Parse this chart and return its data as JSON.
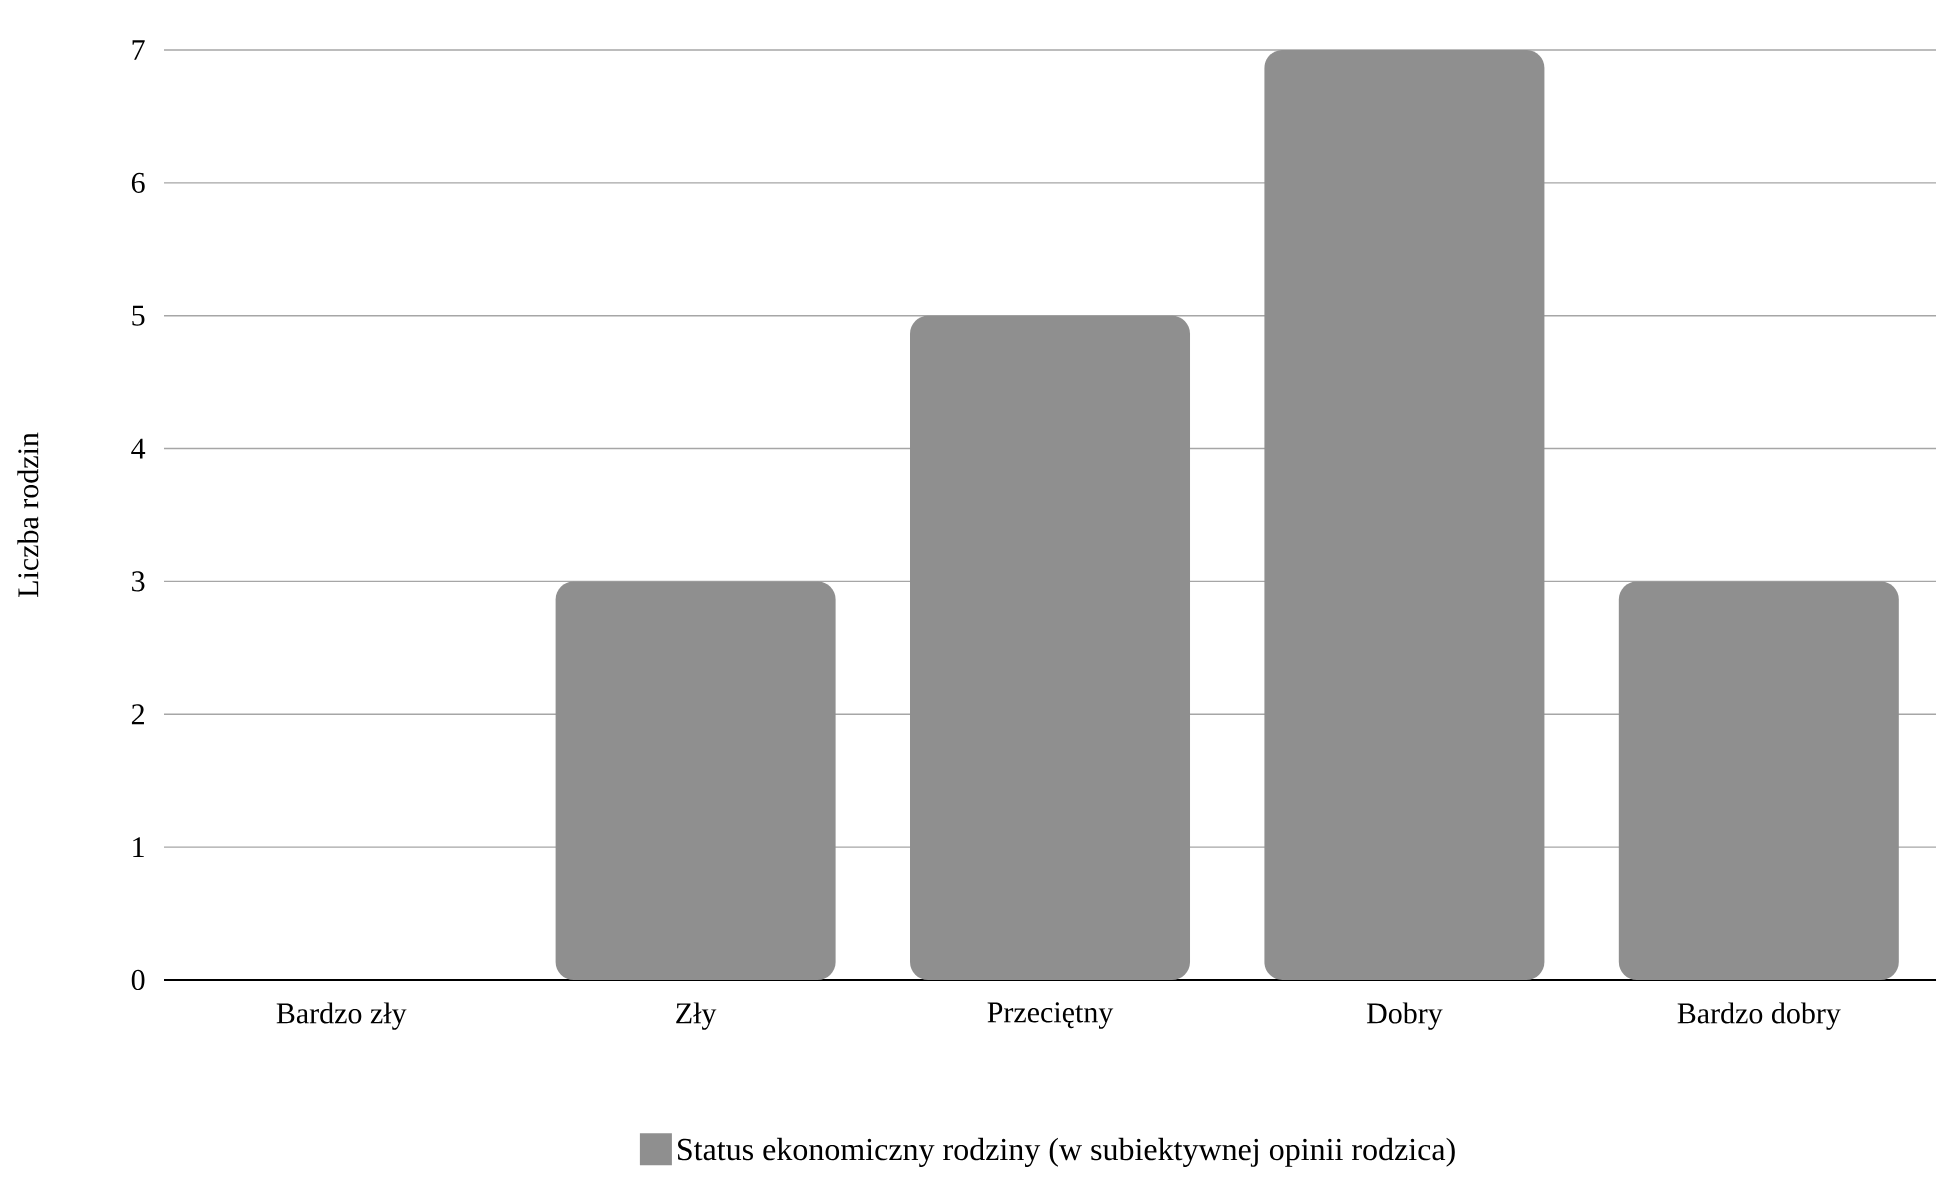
{
  "chart_data": {
    "type": "bar",
    "ylabel": "Liczba rodzin",
    "categories": [
      "Bardzo zły",
      "Zły",
      "Przeciętny",
      "Dobry",
      "Bardzo dobry"
    ],
    "series": [
      {
        "name": "Status ekonomiczny rodziny (w subiektywnej opinii rodzica)",
        "color": "#8f8f8f",
        "values": [
          0,
          3,
          5,
          7,
          3
        ]
      }
    ],
    "ylim": [
      0,
      7
    ],
    "yticks": [
      0,
      1,
      2,
      3,
      4,
      5,
      6,
      7
    ],
    "grid": "y",
    "legend": "bottom"
  }
}
